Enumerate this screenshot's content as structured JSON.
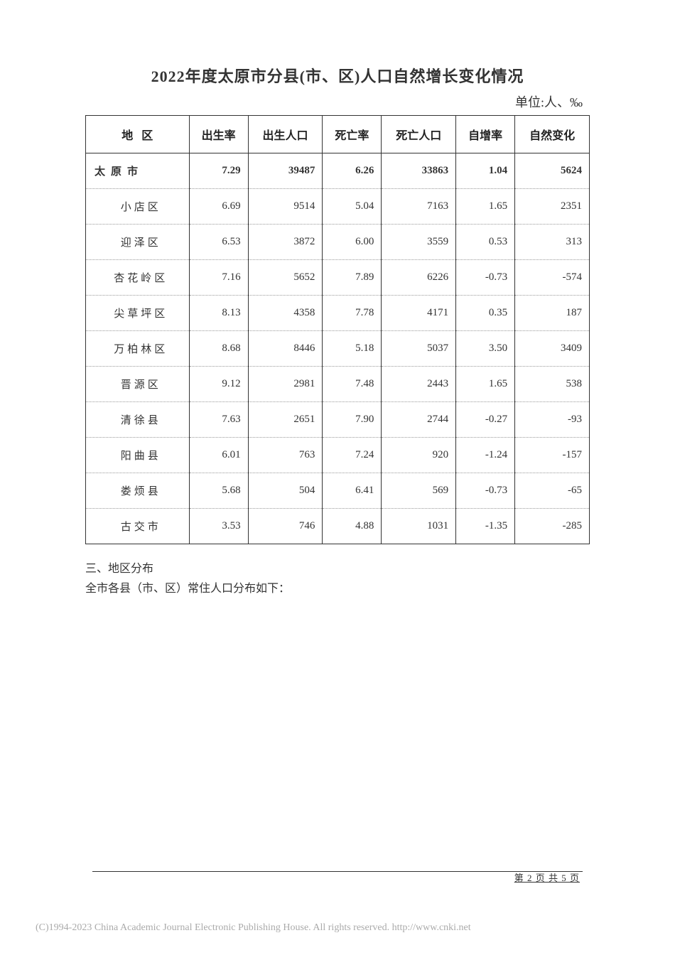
{
  "title": "2022年度太原市分县(市、区)人口自然增长变化情况",
  "unit": "单位:人、‰",
  "table": {
    "headers": [
      "地区",
      "出生率",
      "出生人口",
      "死亡率",
      "死亡人口",
      "自增率",
      "自然变化"
    ],
    "rows": [
      {
        "region": "太原市",
        "birth_rate": "7.29",
        "births": "39487",
        "death_rate": "6.26",
        "deaths": "33863",
        "growth_rate": "1.04",
        "change": "5624",
        "summary": true
      },
      {
        "region": "小店区",
        "birth_rate": "6.69",
        "births": "9514",
        "death_rate": "5.04",
        "deaths": "7163",
        "growth_rate": "1.65",
        "change": "2351"
      },
      {
        "region": "迎泽区",
        "birth_rate": "6.53",
        "births": "3872",
        "death_rate": "6.00",
        "deaths": "3559",
        "growth_rate": "0.53",
        "change": "313"
      },
      {
        "region": "杏花岭区",
        "birth_rate": "7.16",
        "births": "5652",
        "death_rate": "7.89",
        "deaths": "6226",
        "growth_rate": "-0.73",
        "change": "-574"
      },
      {
        "region": "尖草坪区",
        "birth_rate": "8.13",
        "births": "4358",
        "death_rate": "7.78",
        "deaths": "4171",
        "growth_rate": "0.35",
        "change": "187"
      },
      {
        "region": "万柏林区",
        "birth_rate": "8.68",
        "births": "8446",
        "death_rate": "5.18",
        "deaths": "5037",
        "growth_rate": "3.50",
        "change": "3409"
      },
      {
        "region": "晋源区",
        "birth_rate": "9.12",
        "births": "2981",
        "death_rate": "7.48",
        "deaths": "2443",
        "growth_rate": "1.65",
        "change": "538"
      },
      {
        "region": "清徐县",
        "birth_rate": "7.63",
        "births": "2651",
        "death_rate": "7.90",
        "deaths": "2744",
        "growth_rate": "-0.27",
        "change": "-93"
      },
      {
        "region": "阳曲县",
        "birth_rate": "6.01",
        "births": "763",
        "death_rate": "7.24",
        "deaths": "920",
        "growth_rate": "-1.24",
        "change": "-157"
      },
      {
        "region": "娄烦县",
        "birth_rate": "5.68",
        "births": "504",
        "death_rate": "6.41",
        "deaths": "569",
        "growth_rate": "-0.73",
        "change": "-65"
      },
      {
        "region": "古交市",
        "birth_rate": "3.53",
        "births": "746",
        "death_rate": "4.88",
        "deaths": "1031",
        "growth_rate": "-1.35",
        "change": "-285"
      }
    ]
  },
  "section": {
    "heading": "三、地区分布",
    "text": "全市各县（市、区）常住人口分布如下："
  },
  "page_number": "第 2 页 共 5 页",
  "copyright": "(C)1994-2023 China Academic Journal Electronic Publishing House. All rights reserved.    http://www.cnki.net"
}
